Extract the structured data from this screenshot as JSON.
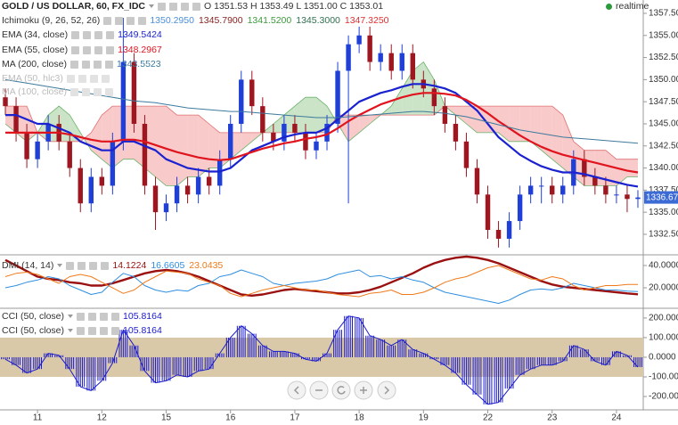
{
  "chart_data": [
    {
      "type": "candlestick",
      "title": "GOLD / US DOLLAR, 60, FX_IDC",
      "ohlc_text": "O 1351.53 H 1353.49 L 1351.00 C 1353.01",
      "status": "realtime",
      "categories": [
        null,
        null,
        null,
        "11",
        null,
        null,
        null,
        null,
        null,
        "12",
        null,
        null,
        null,
        null,
        null,
        "15",
        null,
        null,
        null,
        null,
        null,
        "16",
        null,
        null,
        null,
        null,
        null,
        "17",
        null,
        null,
        null,
        null,
        null,
        "18",
        null,
        null,
        null,
        null,
        null,
        "19",
        null,
        null,
        null,
        null,
        null,
        "22",
        null,
        null,
        null,
        null,
        null,
        "23",
        null,
        null,
        null,
        null,
        null,
        "24",
        null,
        null
      ],
      "open": [
        1348,
        1347,
        1344,
        1341,
        1343,
        1345,
        1343,
        1340,
        1336,
        1339,
        1338,
        1343,
        1352,
        1345,
        1338,
        1335,
        1336,
        1338,
        1337,
        1339,
        1338,
        1341,
        1345,
        1350,
        1347,
        1344,
        1343,
        1345,
        1344,
        1342,
        1343,
        1345,
        1351,
        1354,
        1355,
        1352,
        1353,
        1351,
        1353,
        1350,
        1349,
        1347,
        1345,
        1343,
        1340,
        1337,
        1333,
        1332,
        1334,
        1337,
        1338,
        1338,
        1337,
        1338,
        1341,
        1339,
        1338,
        1337,
        1337,
        1336.5
      ],
      "high": [
        1349,
        1348,
        1345,
        1344,
        1346,
        1346,
        1344,
        1341,
        1340,
        1340,
        1344,
        1357,
        1353,
        1346,
        1339,
        1337,
        1339,
        1339,
        1340,
        1340,
        1342,
        1346,
        1351,
        1351,
        1348,
        1345,
        1346,
        1346,
        1345,
        1344,
        1346,
        1352,
        1355,
        1356,
        1356,
        1354,
        1354,
        1354,
        1354,
        1351,
        1350,
        1348,
        1346,
        1344,
        1341,
        1338,
        1334,
        1335,
        1338,
        1339,
        1339,
        1339,
        1339,
        1342,
        1342,
        1340,
        1339,
        1338,
        1338,
        1337.5
      ],
      "low": [
        1346,
        1343,
        1340,
        1340,
        1342,
        1342,
        1339,
        1335,
        1335,
        1337,
        1337,
        1342,
        1344,
        1337,
        1333,
        1334,
        1335,
        1336,
        1336,
        1337,
        1337,
        1340,
        1344,
        1346,
        1343,
        1342,
        1342,
        1343,
        1341,
        1341,
        1342,
        1344,
        1336,
        1353,
        1351,
        1351,
        1350,
        1350,
        1349,
        1348,
        1346,
        1344,
        1342,
        1339,
        1336,
        1332,
        1331,
        1331,
        1333,
        1336,
        1336,
        1336,
        1336,
        1337,
        1338,
        1337,
        1336,
        1336,
        1335,
        1335.5
      ],
      "close": [
        1347,
        1344,
        1341,
        1343,
        1345,
        1343,
        1340,
        1336,
        1339,
        1338,
        1343,
        1352,
        1345,
        1338,
        1335,
        1336,
        1338,
        1337,
        1339,
        1338,
        1341,
        1345,
        1350,
        1347,
        1344,
        1343,
        1345,
        1344,
        1342,
        1343,
        1345,
        1351,
        1354,
        1355,
        1352,
        1353,
        1351,
        1353,
        1350,
        1349,
        1347,
        1345,
        1343,
        1340,
        1337,
        1333,
        1332,
        1334,
        1337,
        1338,
        1338,
        1337,
        1338,
        1341,
        1339,
        1338,
        1337,
        1337,
        1336.5,
        1336.67
      ],
      "up_color": "#1f3fd6",
      "down_color": "#9e1620",
      "last_value": 1336.67,
      "last_color": "#3d6bd6",
      "cloud_up_color": "#b9dbb4",
      "cloud_down_color": "#f5b8b8",
      "indicators": [
        {
          "name": "Ichimoku (9, 26, 52, 26)",
          "legend_values": [
            "1350.2950",
            "1345.7900",
            "1341.5200",
            "1345.3000",
            "1347.3250"
          ],
          "legend_colors": [
            "#4a90d9",
            "#8b2323",
            "#3a9a3a",
            "#2f6f4f",
            "#e03030"
          ],
          "span_a_color": "#6ab36a",
          "span_b_color": "#e07070",
          "span_a": [
            1345,
            1344,
            1343,
            1344,
            1346,
            1347,
            1346,
            1344,
            1342,
            1341,
            1340,
            1341,
            1341,
            1340,
            1339,
            1338,
            1338,
            1339,
            1339,
            1340,
            1340,
            1341,
            1342,
            1343,
            1344,
            1345,
            1346,
            1347,
            1348,
            1348,
            1347,
            1345,
            1343,
            1344,
            1345,
            1346,
            1347,
            1349,
            1351,
            1352,
            1350,
            1347,
            1346,
            1345,
            1344,
            1344,
            1344,
            1343,
            1343,
            1343,
            1342,
            1341,
            1340,
            1339,
            1338,
            1338,
            1338,
            1338,
            1339,
            1339
          ],
          "span_b": [
            1347,
            1347,
            1347,
            1344,
            1343,
            1343,
            1343,
            1343,
            1344,
            1346,
            1347,
            1347,
            1347,
            1347,
            1347,
            1347,
            1346,
            1346,
            1346,
            1345,
            1344,
            1344,
            1344,
            1344,
            1344,
            1344,
            1344,
            1344,
            1344,
            1344,
            1344,
            1346,
            1346,
            1346,
            1346,
            1346,
            1346,
            1346,
            1346,
            1346,
            1346,
            1347,
            1347,
            1347,
            1347,
            1347,
            1347,
            1347,
            1347,
            1347,
            1347,
            1347,
            1346,
            1343,
            1342,
            1342,
            1342,
            1341,
            1341,
            1341
          ]
        },
        {
          "name": "EMA (34, close)",
          "legend_value": "1349.5424",
          "color": "#1a22d0",
          "width": 2.2,
          "values": [
            1346,
            1346,
            1345.5,
            1345,
            1345,
            1344.5,
            1344,
            1343,
            1342.5,
            1342,
            1342,
            1343,
            1343,
            1342.5,
            1342,
            1341,
            1340.5,
            1340,
            1339.8,
            1339.6,
            1339.6,
            1340,
            1341,
            1342,
            1342.5,
            1343,
            1343.5,
            1343.8,
            1344,
            1344,
            1344.5,
            1345.5,
            1346.5,
            1347.5,
            1348,
            1348.5,
            1348.8,
            1349.2,
            1349.5,
            1349.5,
            1349.3,
            1349,
            1348.5,
            1347.5,
            1346.5,
            1345,
            1343.5,
            1342.5,
            1341.5,
            1340.8,
            1340.2,
            1339.8,
            1339.5,
            1339.5,
            1339.3,
            1339,
            1338.7,
            1338.4,
            1338.1,
            1337.9
          ]
        },
        {
          "name": "EMA (55, close)",
          "legend_value": "1348.2967",
          "color": "#e0141e",
          "width": 2.2,
          "values": [
            1344,
            1344,
            1344,
            1344,
            1344,
            1344,
            1343.8,
            1343.5,
            1343.2,
            1343,
            1343,
            1343.2,
            1343.2,
            1343,
            1342.6,
            1342.2,
            1341.8,
            1341.5,
            1341.2,
            1341,
            1340.9,
            1341,
            1341.4,
            1341.8,
            1342.2,
            1342.5,
            1342.8,
            1343,
            1343.3,
            1343.5,
            1343.8,
            1344.5,
            1345.3,
            1346,
            1346.6,
            1347.2,
            1347.6,
            1348,
            1348.3,
            1348.5,
            1348.5,
            1348.4,
            1348.2,
            1347.7,
            1347,
            1346.2,
            1345.3,
            1344.5,
            1343.7,
            1343,
            1342.4,
            1341.9,
            1341.5,
            1341.2,
            1340.9,
            1340.6,
            1340.3,
            1340,
            1339.7,
            1339.5
          ]
        },
        {
          "name": "MA (200, close)",
          "legend_value": "1343.5523",
          "color": "#3d7a9c",
          "width": 1,
          "values": [
            1350,
            1349.8,
            1349.6,
            1349.4,
            1349.2,
            1349,
            1348.8,
            1348.6,
            1348.4,
            1348.2,
            1348,
            1347.8,
            1347.6,
            1347.5,
            1347.4,
            1347.2,
            1347,
            1346.8,
            1346.7,
            1346.6,
            1346.5,
            1346.4,
            1346.4,
            1346.3,
            1346.2,
            1346.1,
            1346,
            1345.9,
            1345.8,
            1345.7,
            1345.7,
            1345.7,
            1345.8,
            1345.9,
            1346,
            1346.1,
            1346.2,
            1346.3,
            1346.4,
            1346.4,
            1346.3,
            1346.2,
            1346,
            1345.8,
            1345.5,
            1345.2,
            1344.9,
            1344.6,
            1344.3,
            1344.1,
            1343.9,
            1343.7,
            1343.5,
            1343.4,
            1343.3,
            1343.2,
            1343.1,
            1343,
            1342.9,
            1342.8
          ]
        },
        {
          "name": "EMA (50, hlc3)"
        },
        {
          "name": "MA (100, close)"
        }
      ],
      "ylim": [
        1330.28,
        1359.01
      ],
      "yticks": [
        {
          "value": 1332.5,
          "label": "1332.50"
        },
        {
          "value": 1335,
          "label": "1335.00"
        },
        {
          "value": 1337.5,
          "label": "1337.50"
        },
        {
          "value": 1340,
          "label": "1340.00"
        },
        {
          "value": 1342.5,
          "label": "1342.50"
        },
        {
          "value": 1345,
          "label": "1345.00"
        },
        {
          "value": 1347.5,
          "label": "1347.50"
        },
        {
          "value": 1350,
          "label": "1350.00"
        },
        {
          "value": 1352.5,
          "label": "1352.50"
        },
        {
          "value": 1355,
          "label": "1355.00"
        },
        {
          "value": 1357.5,
          "label": "1357.50"
        }
      ]
    },
    {
      "type": "line",
      "title": "DMI (14, 14)",
      "series": [
        {
          "legend_value": "14.1224",
          "color": "#9a1010",
          "width": 2.4,
          "values": [
            45,
            40,
            35,
            30,
            28,
            27,
            25,
            24,
            22,
            22,
            24,
            27,
            30,
            33,
            35,
            36,
            35,
            33,
            30,
            26,
            22,
            18,
            14,
            13,
            14,
            16,
            18,
            19,
            18,
            17,
            16,
            15,
            15,
            16,
            18,
            21,
            25,
            29,
            33,
            38,
            42,
            45,
            47,
            48,
            47,
            45,
            42,
            38,
            34,
            30,
            26,
            23,
            21,
            20,
            19,
            18,
            17,
            16,
            15,
            14.1224
          ]
        },
        {
          "legend_value": "16.6605",
          "color": "#2f8fe0",
          "width": 1,
          "values": [
            20,
            22,
            25,
            27,
            30,
            28,
            22,
            18,
            14,
            16,
            25,
            33,
            30,
            22,
            18,
            16,
            18,
            17,
            22,
            24,
            30,
            32,
            36,
            33,
            30,
            24,
            22,
            24,
            25,
            26,
            28,
            32,
            34,
            36,
            30,
            31,
            28,
            30,
            27,
            25,
            20,
            16,
            14,
            12,
            10,
            8,
            6,
            9,
            14,
            18,
            19,
            18,
            20,
            24,
            22,
            20,
            18,
            18,
            17,
            16.6605
          ]
        },
        {
          "legend_value": "23.0435",
          "color": "#f07a1a",
          "width": 1,
          "values": [
            30,
            33,
            34,
            32,
            28,
            24,
            30,
            32,
            30,
            25,
            20,
            15,
            18,
            25,
            30,
            35,
            34,
            33,
            28,
            25,
            22,
            15,
            12,
            15,
            18,
            20,
            22,
            20,
            18,
            18,
            16,
            14,
            13,
            12,
            15,
            16,
            18,
            14,
            14,
            16,
            20,
            25,
            28,
            30,
            34,
            38,
            40,
            36,
            32,
            28,
            27,
            30,
            28,
            22,
            18,
            20,
            22,
            22,
            23,
            23.0435
          ]
        }
      ],
      "ylim": [
        2.4,
        48.8
      ],
      "yticks": [
        {
          "value": 20,
          "label": "20.0000"
        },
        {
          "value": 40,
          "label": "40.0000"
        }
      ]
    },
    {
      "type": "histogram-line",
      "color": "#1a1acc",
      "band": [
        -100,
        100
      ],
      "band_color": "#d9c9a8",
      "indicators": [
        {
          "name": "CCI (50, close)",
          "legend_value": "105.8164"
        },
        {
          "name": "CCI (50, close)",
          "legend_value": "105.8164"
        }
      ],
      "values": [
        -10,
        -40,
        -80,
        -60,
        20,
        10,
        -60,
        -150,
        -170,
        -120,
        -30,
        140,
        60,
        -70,
        -130,
        -120,
        -90,
        -100,
        -70,
        -60,
        20,
        100,
        160,
        120,
        60,
        30,
        30,
        20,
        -10,
        -20,
        20,
        140,
        210,
        200,
        110,
        90,
        60,
        90,
        40,
        20,
        -10,
        -40,
        -80,
        -140,
        -190,
        -240,
        -230,
        -160,
        -90,
        -60,
        -40,
        -40,
        -20,
        60,
        40,
        -20,
        -40,
        30,
        10,
        -50
      ],
      "ylim": [
        -268,
        245
      ],
      "yticks": [
        {
          "value": -200,
          "label": "-200.0000"
        },
        {
          "value": -100,
          "label": "-100.0000"
        },
        {
          "value": 0,
          "label": "0.0000"
        },
        {
          "value": 100,
          "label": "100.0000"
        },
        {
          "value": 200,
          "label": "200.0000"
        }
      ]
    }
  ]
}
